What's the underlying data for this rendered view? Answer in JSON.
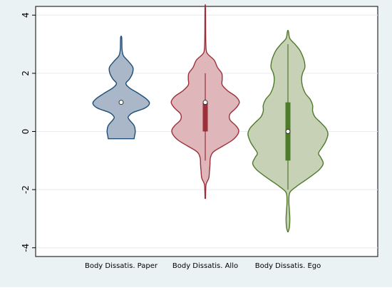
{
  "chart_data": {
    "type": "violin",
    "categories": [
      "Body Dissatis. Paper",
      "Body Dissatis. Allo",
      "Body Dissatis. Ego"
    ],
    "ylim": [
      -4.3,
      4.3
    ],
    "yticks": [
      -4,
      -2,
      0,
      2,
      4
    ],
    "ytick_labels": [
      "-4",
      "-2",
      "0",
      "2",
      "4"
    ],
    "grid": true,
    "background_colors": {
      "outer": "#eaf2f3",
      "plot": "#ffffff"
    },
    "series": [
      {
        "category": "Body Dissatis. Paper",
        "fill": "#aab7c9",
        "stroke": "#1f4e79",
        "box_color": "#1f4e79",
        "median": 1.0,
        "q1": 1.0,
        "q3": 1.0,
        "whisker_low": 1.0,
        "whisker_high": 1.0,
        "density": [
          [
            -0.25,
            0.55
          ],
          [
            -0.15,
            0.57
          ],
          [
            0.0,
            0.6
          ],
          [
            0.2,
            0.55
          ],
          [
            0.4,
            0.35
          ],
          [
            0.5,
            0.3
          ],
          [
            0.65,
            0.5
          ],
          [
            0.8,
            1.0
          ],
          [
            0.95,
            1.2
          ],
          [
            1.1,
            1.1
          ],
          [
            1.3,
            0.75
          ],
          [
            1.5,
            0.35
          ],
          [
            1.65,
            0.2
          ],
          [
            1.8,
            0.35
          ],
          [
            2.0,
            0.48
          ],
          [
            2.2,
            0.5
          ],
          [
            2.4,
            0.32
          ],
          [
            2.6,
            0.1
          ],
          [
            2.8,
            0.04
          ],
          [
            3.05,
            0.03
          ],
          [
            3.25,
            0.02
          ]
        ]
      },
      {
        "category": "Body Dissatis. Allo",
        "fill": "#dfb6ba",
        "stroke": "#9b2f3a",
        "box_color": "#9b2f3a",
        "median": 1.0,
        "q1": 0.0,
        "q3": 1.0,
        "whisker_low": -1.0,
        "whisker_high": 2.0,
        "density": [
          [
            -2.3,
            0.01
          ],
          [
            -2.0,
            0.02
          ],
          [
            -1.8,
            0.04
          ],
          [
            -1.6,
            0.15
          ],
          [
            -1.35,
            0.18
          ],
          [
            -1.15,
            0.2
          ],
          [
            -0.9,
            0.22
          ],
          [
            -0.7,
            0.35
          ],
          [
            -0.5,
            0.75
          ],
          [
            -0.3,
            1.15
          ],
          [
            -0.1,
            1.38
          ],
          [
            0.05,
            1.42
          ],
          [
            0.2,
            1.3
          ],
          [
            0.4,
            1.05
          ],
          [
            0.6,
            1.05
          ],
          [
            0.8,
            1.3
          ],
          [
            1.0,
            1.45
          ],
          [
            1.2,
            1.3
          ],
          [
            1.4,
            0.95
          ],
          [
            1.6,
            0.72
          ],
          [
            1.8,
            0.72
          ],
          [
            2.0,
            0.7
          ],
          [
            2.2,
            0.52
          ],
          [
            2.45,
            0.38
          ],
          [
            2.65,
            0.12
          ],
          [
            2.8,
            0.04
          ],
          [
            3.2,
            0.02
          ],
          [
            3.8,
            0.015
          ],
          [
            4.3,
            0.01
          ]
        ]
      },
      {
        "category": "Body Dissatis. Ego",
        "fill": "#c6d1b6",
        "stroke": "#4e7a2a",
        "box_color": "#4e7a2a",
        "median": 0.0,
        "q1": -1.0,
        "q3": 1.0,
        "whisker_low": -2.0,
        "whisker_high": 3.0,
        "density": [
          [
            -3.45,
            0.01
          ],
          [
            -3.3,
            0.06
          ],
          [
            -3.0,
            0.08
          ],
          [
            -2.7,
            0.06
          ],
          [
            -2.4,
            0.04
          ],
          [
            -2.1,
            0.08
          ],
          [
            -1.9,
            0.35
          ],
          [
            -1.7,
            0.7
          ],
          [
            -1.5,
            1.05
          ],
          [
            -1.3,
            1.35
          ],
          [
            -1.1,
            1.5
          ],
          [
            -0.9,
            1.4
          ],
          [
            -0.75,
            1.3
          ],
          [
            -0.55,
            1.45
          ],
          [
            -0.35,
            1.6
          ],
          [
            -0.1,
            1.7
          ],
          [
            0.1,
            1.62
          ],
          [
            0.3,
            1.4
          ],
          [
            0.5,
            1.15
          ],
          [
            0.7,
            1.05
          ],
          [
            0.9,
            1.05
          ],
          [
            1.1,
            0.95
          ],
          [
            1.3,
            0.75
          ],
          [
            1.55,
            0.62
          ],
          [
            1.8,
            0.58
          ],
          [
            2.0,
            0.62
          ],
          [
            2.2,
            0.72
          ],
          [
            2.4,
            0.7
          ],
          [
            2.6,
            0.62
          ],
          [
            2.8,
            0.5
          ],
          [
            3.0,
            0.3
          ],
          [
            3.2,
            0.08
          ],
          [
            3.45,
            0.02
          ]
        ]
      }
    ]
  }
}
